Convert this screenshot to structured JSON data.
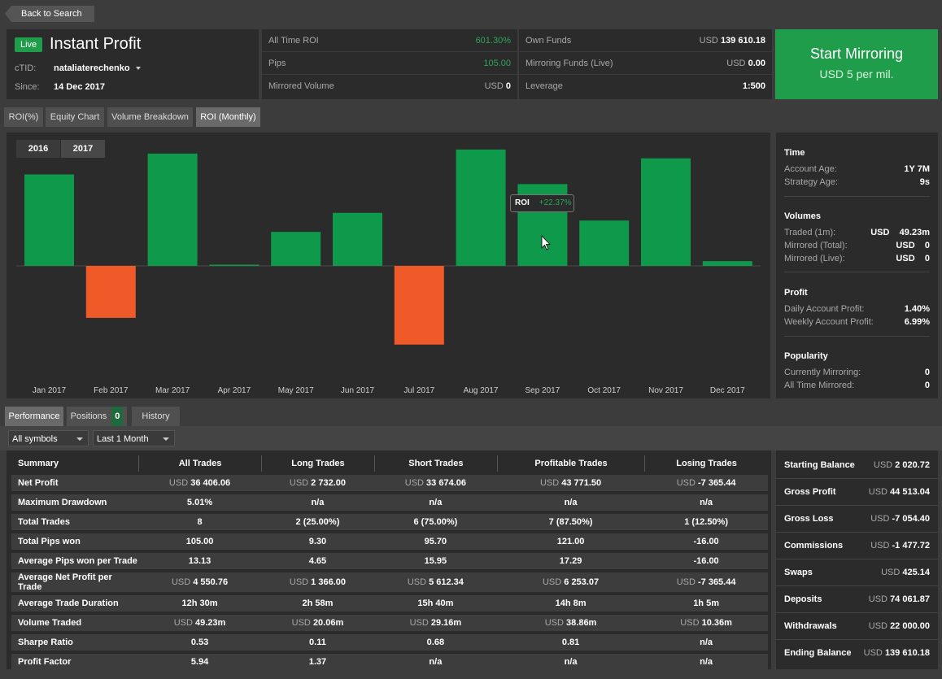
{
  "nav": {
    "back_label": "Back to Search"
  },
  "account": {
    "status": "Live",
    "name": "Instant Profit",
    "ctid_label": "cTID:",
    "ctid_value": "nataliaterechenko",
    "since_label": "Since:",
    "since_value": "14 Dec 2017"
  },
  "stats_col1": [
    {
      "label": "All Time ROI",
      "value": "601.30%"
    },
    {
      "label": "Pips",
      "value": "105.00"
    },
    {
      "label": "Mirrored Volume",
      "currency": "USD",
      "value": "0"
    }
  ],
  "stats_col2": [
    {
      "label": "Own Funds",
      "currency": "USD",
      "value": "139 610.18"
    },
    {
      "label": "Mirroring Funds (Live)",
      "currency": "USD",
      "value": "0.00"
    },
    {
      "label": "Leverage",
      "value": "1:500"
    }
  ],
  "cta": {
    "title": "Start Mirroring",
    "subtitle": "USD 5 per mil."
  },
  "chart_tabs": [
    "ROI(%)",
    "Equity Chart",
    "Volume Breakdown",
    "ROI (Monthly)"
  ],
  "years": [
    "2016",
    "2017"
  ],
  "chart_data": {
    "type": "bar",
    "categories": [
      "Jan 2017",
      "Feb 2017",
      "Mar 2017",
      "Apr 2017",
      "May 2017",
      "Jun 2017",
      "Jul 2017",
      "Aug 2017",
      "Sep 2017",
      "Oct 2017",
      "Nov 2017",
      "Dec 2017"
    ],
    "values": [
      25.0,
      -14.2,
      30.7,
      0.3,
      9.3,
      14.5,
      -21.5,
      31.8,
      22.37,
      12.4,
      29.4,
      1.3
    ],
    "positive_color": "#0e9a4a",
    "negative_color": "#f05a28",
    "tooltip": {
      "label": "ROI",
      "value": "+22.37%"
    }
  },
  "side": {
    "time": {
      "heading": "Time",
      "rows": [
        {
          "label": "Account Age:",
          "value": "1Y 7M"
        },
        {
          "label": "Strategy Age:",
          "value": "9s"
        }
      ]
    },
    "volumes": {
      "heading": "Volumes",
      "rows": [
        {
          "label": "Traded (1m):",
          "value": "USD    49.23m"
        },
        {
          "label": "Mirrored (Total):",
          "value": "USD    0"
        },
        {
          "label": "Mirrored (Live):",
          "value": "USD    0"
        }
      ]
    },
    "profit": {
      "heading": "Profit",
      "rows": [
        {
          "label": "Daily Account Profit:",
          "value": "1.40%"
        },
        {
          "label": "Weekly Account Profit:",
          "value": "6.99%"
        }
      ]
    },
    "popularity": {
      "heading": "Popularity",
      "rows": [
        {
          "label": "Currently Mirroring:",
          "value": "0"
        },
        {
          "label": "All Time Mirrored:",
          "value": "0"
        }
      ]
    }
  },
  "bottom_tabs": {
    "performance": "Performance",
    "positions": "Positions",
    "positions_count": "0",
    "history": "History"
  },
  "filters": {
    "symbols": "All symbols",
    "period": "Last 1 Month"
  },
  "performance": {
    "headers": [
      "Summary",
      "All Trades",
      "Long Trades",
      "Short Trades",
      "Profitable Trades",
      "Losing Trades"
    ],
    "rows": [
      [
        "Net Profit",
        "USD 36 406.06",
        "USD 2 732.00",
        "USD 33 674.06",
        "USD 43 771.50",
        "USD -7 365.44"
      ],
      [
        "Maximum Drawdown",
        "5.01%",
        "n/a",
        "n/a",
        "n/a",
        "n/a"
      ],
      [
        "Total Trades",
        "8",
        "2 (25.00%)",
        "6 (75.00%)",
        "7 (87.50%)",
        "1 (12.50%)"
      ],
      [
        "Total Pips won",
        "105.00",
        "9.30",
        "95.70",
        "121.00",
        "-16.00"
      ],
      [
        "Average Pips won per Trade",
        "13.13",
        "4.65",
        "15.95",
        "17.29",
        "-16.00"
      ],
      [
        "Average Net Profit per Trade",
        "USD 4 550.76",
        "USD 1 366.00",
        "USD 5 612.34",
        "USD 6 253.07",
        "USD -7 365.44"
      ],
      [
        "Average Trade Duration",
        "12h 30m",
        "2h 58m",
        "15h 40m",
        "14h 8m",
        "1h 5m"
      ],
      [
        "Volume Traded",
        "USD 49.23m",
        "USD 20.06m",
        "USD 29.16m",
        "USD 38.86m",
        "USD 10.36m"
      ],
      [
        "Sharpe Ratio",
        "0.53",
        "0.11",
        "0.68",
        "0.81",
        "n/a"
      ],
      [
        "Profit Factor",
        "5.94",
        "1.37",
        "n/a",
        "n/a",
        "n/a"
      ]
    ]
  },
  "balances": [
    {
      "label": "Starting Balance",
      "value": "USD 2 020.72"
    },
    {
      "label": "Gross Profit",
      "value": "USD 44 513.04"
    },
    {
      "label": "Gross Loss",
      "value": "USD -7 054.40"
    },
    {
      "label": "Commissions",
      "value": "USD -1 477.72"
    },
    {
      "label": "Swaps",
      "value": "USD 425.14"
    },
    {
      "label": "Deposits",
      "value": "USD 74 061.87"
    },
    {
      "label": "Withdrawals",
      "value": "USD 22 000.00"
    },
    {
      "label": "Ending Balance",
      "value": "USD 139 610.18"
    }
  ]
}
